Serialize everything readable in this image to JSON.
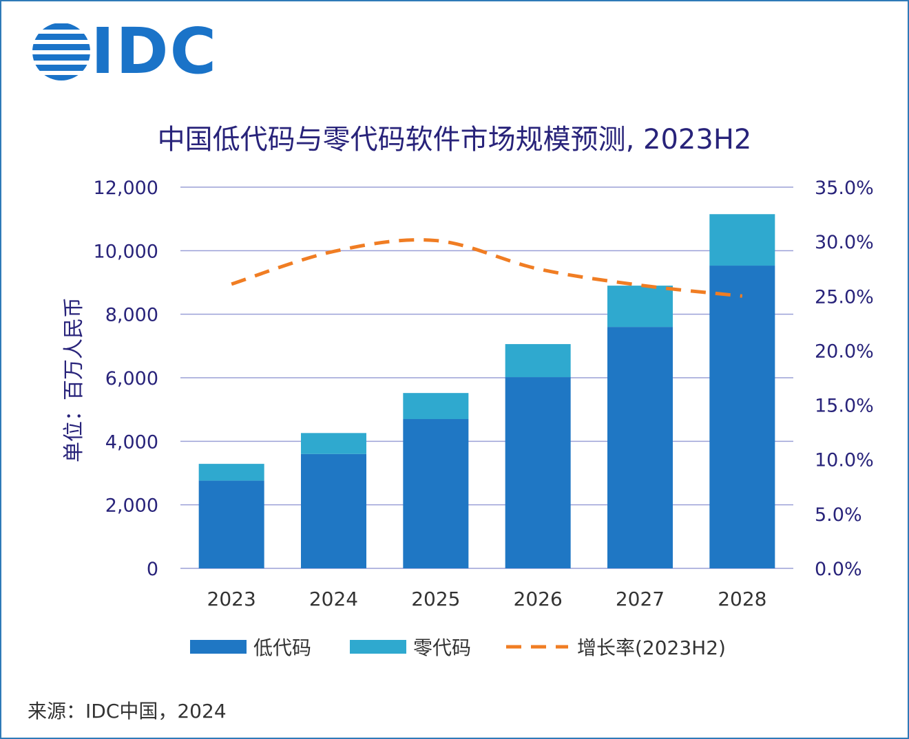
{
  "logo": {
    "text": "IDC"
  },
  "chart_data": {
    "type": "bar",
    "title": "中国低代码与零代码软件市场规模预测, 2023H2",
    "ylabel": "单位：百万人民币",
    "xlabel": "",
    "categories": [
      "2023",
      "2024",
      "2025",
      "2026",
      "2027",
      "2028"
    ],
    "stacked": true,
    "series": [
      {
        "name": "低代码",
        "kind": "bar",
        "axis": "left",
        "values": [
          2760,
          3600,
          4700,
          6020,
          7600,
          9530
        ]
      },
      {
        "name": "零代码",
        "kind": "bar",
        "axis": "left",
        "values": [
          530,
          660,
          820,
          1040,
          1300,
          1620
        ]
      },
      {
        "name": "增长率(2023H2)",
        "kind": "line",
        "axis": "right",
        "style": "dashed",
        "values": [
          0.261,
          0.291,
          0.301,
          0.275,
          0.26,
          0.25
        ]
      }
    ],
    "ylim": [
      0,
      12000
    ],
    "yticks": [
      0,
      2000,
      4000,
      6000,
      8000,
      10000,
      12000
    ],
    "ytick_labels": [
      "0",
      "2,000",
      "4,000",
      "6,000",
      "8,000",
      "10,000",
      "12,000"
    ],
    "y2lim": [
      0,
      0.35
    ],
    "y2ticks": [
      0,
      0.05,
      0.1,
      0.15,
      0.2,
      0.25,
      0.3,
      0.35
    ],
    "y2tick_labels": [
      "0.0%",
      "5.0%",
      "10.0%",
      "15.0%",
      "20.0%",
      "25.0%",
      "30.0%",
      "35.0%"
    ],
    "grid": true,
    "legend_position": "bottom-center"
  },
  "source": "来源：IDC中国，2024",
  "colors": {
    "low_code": "#1f77c4",
    "zero_code": "#2fa9cf",
    "growth": "#f07d23",
    "grid": "#9a9fd6",
    "axis_text": "#28237a",
    "brand": "#1a73c8"
  }
}
